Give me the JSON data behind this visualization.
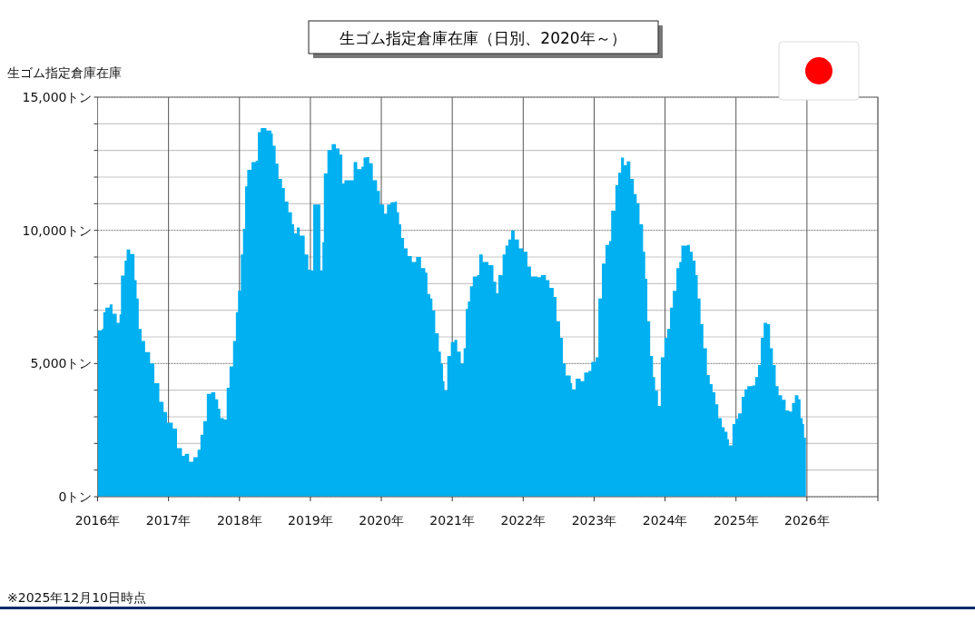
{
  "chart_data": {
    "type": "area",
    "title": "生ゴム指定倉庫在庫（日別、2020年～）",
    "ylabel": "生ゴム指定倉庫在庫",
    "annotations": [
      "※2025年12月10日時点"
    ],
    "x": [
      2016.0,
      2016.06,
      2016.08,
      2016.11,
      2016.17,
      2016.21,
      2016.27,
      2016.31,
      2016.33,
      2016.38,
      2016.41,
      2016.46,
      2016.52,
      2016.55,
      2016.58,
      2016.62,
      2016.67,
      2016.74,
      2016.8,
      2016.87,
      2016.93,
      2016.98,
      2017.06,
      2017.12,
      2017.19,
      2017.23,
      2017.29,
      2017.35,
      2017.41,
      2017.45,
      2017.49,
      2017.54,
      2017.6,
      2017.66,
      2017.7,
      2017.73,
      2017.78,
      2017.82,
      2017.86,
      2017.91,
      2017.95,
      2017.98,
      2018.02,
      2018.05,
      2018.08,
      2018.11,
      2018.17,
      2018.23,
      2018.26,
      2018.3,
      2018.38,
      2018.45,
      2018.47,
      2018.51,
      2018.55,
      2018.6,
      2018.64,
      2018.69,
      2018.74,
      2018.77,
      2018.81,
      2018.85,
      2018.92,
      2018.97,
      2019.01,
      2019.04,
      2019.11,
      2019.14,
      2019.17,
      2019.19,
      2019.24,
      2019.3,
      2019.36,
      2019.41,
      2019.45,
      2019.48,
      2019.58,
      2019.61,
      2019.66,
      2019.72,
      2019.75,
      2019.79,
      2019.83,
      2019.88,
      2019.94,
      2019.98,
      2020.04,
      2020.08,
      2020.13,
      2020.19,
      2020.22,
      2020.25,
      2020.28,
      2020.32,
      2020.37,
      2020.43,
      2020.49,
      2020.56,
      2020.62,
      2020.65,
      2020.69,
      2020.72,
      2020.76,
      2020.81,
      2020.84,
      2020.87,
      2020.89,
      2020.93,
      2020.98,
      2021.03,
      2021.07,
      2021.12,
      2021.16,
      2021.19,
      2021.22,
      2021.25,
      2021.29,
      2021.35,
      2021.38,
      2021.43,
      2021.51,
      2021.58,
      2021.62,
      2021.65,
      2021.71,
      2021.75,
      2021.79,
      2021.83,
      2021.88,
      2021.94,
      2022.0,
      2022.06,
      2022.11,
      2022.2,
      2022.25,
      2022.32,
      2022.37,
      2022.43,
      2022.47,
      2022.52,
      2022.56,
      2022.6,
      2022.67,
      2022.69,
      2022.74,
      2022.81,
      2022.86,
      2022.92,
      2022.96,
      2023.02,
      2023.06,
      2023.11,
      2023.16,
      2023.21,
      2023.24,
      2023.3,
      2023.34,
      2023.38,
      2023.42,
      2023.46,
      2023.51,
      2023.56,
      2023.6,
      2023.64,
      2023.69,
      2023.72,
      2023.75,
      2023.79,
      2023.83,
      2023.86,
      2023.9,
      2023.94,
      2023.99,
      2024.03,
      2024.07,
      2024.11,
      2024.16,
      2024.2,
      2024.23,
      2024.31,
      2024.35,
      2024.39,
      2024.43,
      2024.46,
      2024.5,
      2024.54,
      2024.59,
      2024.63,
      2024.67,
      2024.71,
      2024.75,
      2024.8,
      2024.84,
      2024.88,
      2024.9,
      2024.95,
      2024.99,
      2025.03,
      2025.08,
      2025.12,
      2025.16,
      2025.23,
      2025.27,
      2025.31,
      2025.35,
      2025.39,
      2025.44,
      2025.48,
      2025.52,
      2025.56,
      2025.6,
      2025.65,
      2025.7,
      2025.75,
      2025.79,
      2025.83,
      2025.88,
      2025.91,
      2025.94,
      2025.96
    ],
    "series": [
      {
        "color": "#00b0f0",
        "values": [
          6250,
          6300,
          6930,
          7100,
          7220,
          6870,
          6530,
          6840,
          8300,
          8860,
          9280,
          9110,
          8130,
          7440,
          6300,
          5850,
          5430,
          5000,
          4260,
          3560,
          3180,
          2780,
          2560,
          1820,
          1530,
          1610,
          1310,
          1480,
          1760,
          2330,
          2840,
          3860,
          3920,
          3660,
          3300,
          2950,
          2900,
          4090,
          4890,
          5850,
          6930,
          7730,
          9090,
          10060,
          11650,
          12270,
          12560,
          12610,
          13690,
          13840,
          13750,
          13640,
          13180,
          12500,
          11930,
          11590,
          11080,
          10680,
          10230,
          9890,
          10110,
          9800,
          9090,
          8520,
          8500,
          10970,
          10970,
          8500,
          9550,
          12140,
          13010,
          13240,
          13070,
          12840,
          11760,
          11880,
          11880,
          12560,
          12300,
          12390,
          12730,
          12750,
          12520,
          11880,
          11480,
          10970,
          10630,
          10970,
          11050,
          11080,
          10680,
          10230,
          9720,
          9320,
          9030,
          8810,
          9000,
          8580,
          8410,
          7610,
          7440,
          6990,
          6140,
          5450,
          5000,
          4340,
          4000,
          5280,
          5800,
          5890,
          5450,
          5000,
          5570,
          7050,
          7330,
          7900,
          8270,
          8320,
          9090,
          8810,
          8690,
          8070,
          7640,
          8320,
          9090,
          9430,
          9660,
          10000,
          9660,
          9320,
          9200,
          8640,
          8270,
          8240,
          8320,
          8130,
          7840,
          7500,
          6590,
          5970,
          5000,
          4550,
          4260,
          4030,
          4430,
          4340,
          4660,
          4720,
          5060,
          5230,
          7440,
          8750,
          9450,
          9600,
          10740,
          11700,
          12160,
          12730,
          12440,
          12590,
          11930,
          11360,
          11020,
          10230,
          9200,
          8180,
          6590,
          5280,
          4490,
          3980,
          3410,
          5230,
          5970,
          6300,
          7100,
          7730,
          8580,
          8810,
          9430,
          9450,
          9200,
          8860,
          8320,
          7440,
          6480,
          5570,
          4570,
          4230,
          3920,
          3470,
          2950,
          2610,
          2440,
          2160,
          1930,
          2730,
          2930,
          3130,
          3750,
          4030,
          4150,
          4180,
          4490,
          4940,
          5970,
          6530,
          6480,
          5570,
          4940,
          4150,
          3810,
          3640,
          3240,
          3200,
          3520,
          3810,
          3660,
          2950,
          2730,
          2220
        ]
      }
    ],
    "xlim": [
      2016,
      2027
    ],
    "ylim": [
      0,
      15000
    ],
    "xticks": [
      {
        "value": 2016,
        "label": "2016年"
      },
      {
        "value": 2017,
        "label": "2017年"
      },
      {
        "value": 2018,
        "label": "2018年"
      },
      {
        "value": 2019,
        "label": "2019年"
      },
      {
        "value": 2020,
        "label": "2020年"
      },
      {
        "value": 2021,
        "label": "2021年"
      },
      {
        "value": 2022,
        "label": "2022年"
      },
      {
        "value": 2023,
        "label": "2023年"
      },
      {
        "value": 2024,
        "label": "2024年"
      },
      {
        "value": 2025,
        "label": "2025年"
      },
      {
        "value": 2026,
        "label": "2026年"
      },
      {
        "value": 2027,
        "label": null
      }
    ],
    "yticks": [
      {
        "value": 0,
        "label": "0トン"
      },
      {
        "value": 1000,
        "label": null
      },
      {
        "value": 2000,
        "label": null
      },
      {
        "value": 3000,
        "label": null
      },
      {
        "value": 4000,
        "label": null
      },
      {
        "value": 5000,
        "label": "5,000トン"
      },
      {
        "value": 6000,
        "label": null
      },
      {
        "value": 7000,
        "label": null
      },
      {
        "value": 8000,
        "label": null
      },
      {
        "value": 9000,
        "label": null
      },
      {
        "value": 10000,
        "label": "10,000トン"
      },
      {
        "value": 11000,
        "label": null
      },
      {
        "value": 12000,
        "label": null
      },
      {
        "value": 13000,
        "label": null
      },
      {
        "value": 14000,
        "label": null
      },
      {
        "value": 15000,
        "label": "15,000トン"
      }
    ],
    "grid": true
  }
}
